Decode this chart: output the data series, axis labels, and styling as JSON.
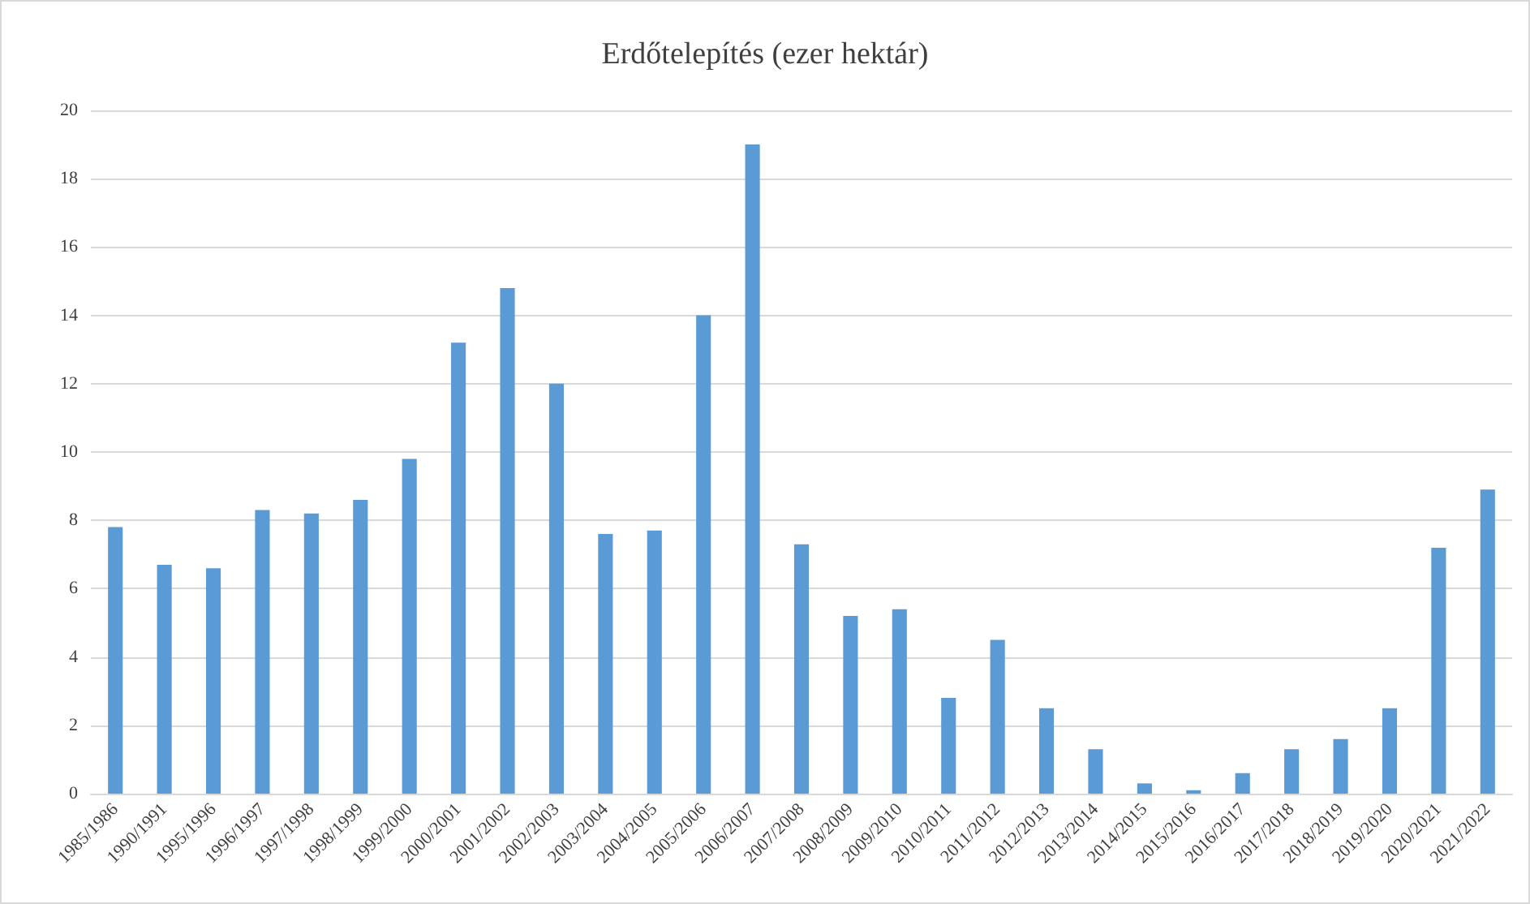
{
  "chart_data": {
    "type": "bar",
    "title": "Erdőtelepítés (ezer hektár)",
    "categories": [
      "1985/1986",
      "1990/1991",
      "1995/1996",
      "1996/1997",
      "1997/1998",
      "1998/1999",
      "1999/2000",
      "2000/2001",
      "2001/2002",
      "2002/2003",
      "2003/2004",
      "2004/2005",
      "2005/2006",
      "2006/2007",
      "2007/2008",
      "2008/2009",
      "2009/2010",
      "2010/2011",
      "2011/2012",
      "2012/2013",
      "2013/2014",
      "2014/2015",
      "2015/2016",
      "2016/2017",
      "2017/2018",
      "2018/2019",
      "2019/2020",
      "2020/2021",
      "2021/2022"
    ],
    "values": [
      7.8,
      6.7,
      6.6,
      8.3,
      8.2,
      8.6,
      9.8,
      13.2,
      14.8,
      12.0,
      7.6,
      7.7,
      14.0,
      19.0,
      7.3,
      5.2,
      5.4,
      2.8,
      4.5,
      2.5,
      1.3,
      0.3,
      0.1,
      0.6,
      1.3,
      1.6,
      2.5,
      7.2,
      8.9
    ],
    "color": "#5b9bd5",
    "ylim": [
      0,
      20
    ],
    "yticks": [
      0,
      2,
      4,
      6,
      8,
      10,
      12,
      14,
      16,
      18,
      20
    ],
    "grid": "y"
  }
}
